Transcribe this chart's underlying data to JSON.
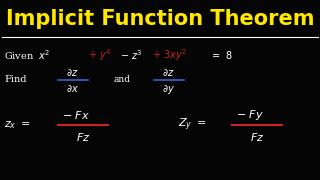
{
  "background_color": "#050505",
  "title": "Implicit Function Theorem",
  "title_color": "#FFE800",
  "title_fontsize": 15,
  "text_color": "#FFFFFF",
  "red_color": "#CC2222",
  "blue_color": "#3366CC",
  "line_color": "#FFFFFF"
}
